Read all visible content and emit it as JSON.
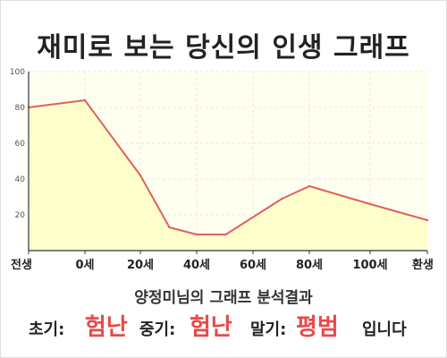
{
  "title": "재미로 보는 당신의 인생 그래프",
  "subtitle": "양정미님의 그래프 분석결과",
  "verdict": {
    "early_label": "초기:",
    "early_value": "험난",
    "mid_label": "중기:",
    "mid_value": "험난",
    "late_label": "말기:",
    "late_value": "평범",
    "ending": "입니다"
  },
  "colors": {
    "line": "#e06060",
    "fill": "#ffffcc",
    "plot_bg": "#fffff0",
    "accent_text": "#e84a4a"
  },
  "chart_data": {
    "type": "area",
    "title": "재미로 보는 당신의 인생 그래프",
    "xlabel": "",
    "ylabel": "",
    "x_tick_labels": [
      "전생",
      "0세",
      "20세",
      "40세",
      "60세",
      "80세",
      "100세",
      "환생"
    ],
    "y_ticks": [
      20,
      40,
      60,
      80,
      100
    ],
    "ylim": [
      0,
      100
    ],
    "grid": true,
    "series": [
      {
        "points": [
          {
            "x": "전생",
            "y": 80
          },
          {
            "x": "0세",
            "y": 84
          },
          {
            "x": "20세",
            "y": 42
          },
          {
            "x": "30세",
            "y": 13
          },
          {
            "x": "40세",
            "y": 9
          },
          {
            "x": "50세",
            "y": 9
          },
          {
            "x": "70세",
            "y": 29
          },
          {
            "x": "80세",
            "y": 36
          },
          {
            "x": "100세",
            "y": 26
          },
          {
            "x": "환생",
            "y": 17
          }
        ]
      }
    ]
  }
}
